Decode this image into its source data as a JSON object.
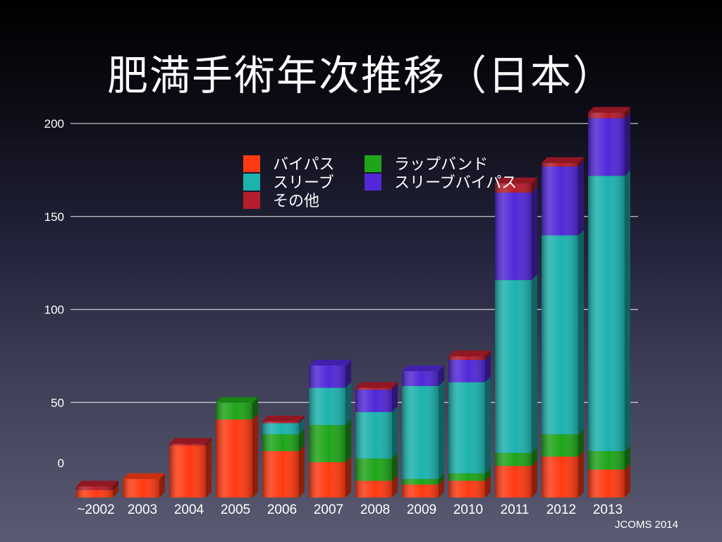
{
  "title": "肥満手術年次推移（日本）",
  "footer": "JCOMS 2014",
  "colors": {
    "bypass": "#ff3a12",
    "band": "#1fa51a",
    "sleeve": "#1cb2ae",
    "sleeve_bypass": "#5228d8",
    "other": "#b51d2c"
  },
  "chart_data": {
    "type": "bar",
    "stacked": true,
    "categories": [
      "~2002",
      "2003",
      "2004",
      "2005",
      "2006",
      "2007",
      "2008",
      "2009",
      "2010",
      "2011",
      "2012",
      "2013"
    ],
    "series": [
      {
        "name": "バイパス",
        "key": "bypass",
        "values": [
          4,
          10,
          28,
          42,
          25,
          19,
          9,
          7,
          9,
          17,
          22,
          15
        ]
      },
      {
        "name": "ラップバンド",
        "key": "band",
        "values": [
          0,
          0,
          0,
          9,
          9,
          20,
          12,
          3,
          4,
          7,
          12,
          10
        ]
      },
      {
        "name": "スリーブ",
        "key": "sleeve",
        "values": [
          0,
          0,
          0,
          0,
          6,
          20,
          25,
          50,
          49,
          93,
          107,
          148
        ]
      },
      {
        "name": "スリーブバイパス",
        "key": "sleeve_bypass",
        "values": [
          0,
          0,
          0,
          0,
          0,
          12,
          12,
          8,
          12,
          47,
          37,
          31
        ]
      },
      {
        "name": "その他",
        "key": "other",
        "values": [
          2,
          0,
          1,
          0,
          1,
          0,
          1,
          0,
          2,
          5,
          2,
          3
        ]
      }
    ],
    "legend_items": [
      {
        "label": "バイパス",
        "key": "bypass"
      },
      {
        "label": "ラップバンド",
        "key": "band"
      },
      {
        "label": "スリーブ",
        "key": "sleeve"
      },
      {
        "label": "スリーブバイパス",
        "key": "sleeve_bypass"
      },
      {
        "label": "その他",
        "key": "other"
      }
    ],
    "y_ticks": [
      0,
      50,
      100,
      150,
      200
    ],
    "ylim": [
      0,
      200
    ],
    "grid": true,
    "legend_position": "top-center"
  }
}
